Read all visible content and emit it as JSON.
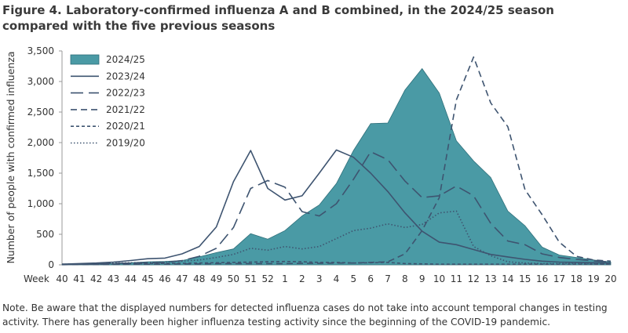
{
  "title": "Figure 4. Laboratory-confirmed influenza A and B combined, in the 2024/25 season compared with the five previous seasons",
  "note": "Note. Be aware that the displayed numbers for detected influenza cases do not take into account temporal changes in testing activity. There has generally been higher influenza testing activity since the beginning of the COVID-19 pandemic.",
  "colors": {
    "fill": "#4a9aa5",
    "line": "#3e5470",
    "axis": "#999999"
  },
  "chart_data": {
    "type": "area",
    "xlabel": "Week",
    "ylabel": "Number of people with confirmed influenza",
    "ylim": [
      0,
      3500
    ],
    "yticks": [
      "0",
      "500",
      "1,000",
      "1,500",
      "2,000",
      "2,500",
      "3,000",
      "3,500"
    ],
    "ytick_values": [
      0,
      500,
      1000,
      1500,
      2000,
      2500,
      3000,
      3500
    ],
    "categories": [
      "40",
      "41",
      "42",
      "43",
      "44",
      "45",
      "46",
      "47",
      "48",
      "49",
      "50",
      "51",
      "52",
      "1",
      "2",
      "3",
      "4",
      "5",
      "6",
      "7",
      "8",
      "9",
      "10",
      "11",
      "12",
      "13",
      "14",
      "15",
      "16",
      "17",
      "18",
      "19",
      "20"
    ],
    "legend_position": "top-left",
    "series": [
      {
        "name": "2024/25",
        "style": "area",
        "values": [
          5,
          10,
          15,
          25,
          35,
          50,
          55,
          70,
          130,
          200,
          260,
          510,
          420,
          560,
          800,
          980,
          1330,
          1870,
          2310,
          2320,
          2860,
          3210,
          2810,
          2030,
          1700,
          1430,
          880,
          640,
          290,
          160,
          120,
          80,
          45
        ]
      },
      {
        "name": "2023/24",
        "style": "solid",
        "values": [
          10,
          20,
          30,
          45,
          70,
          100,
          110,
          180,
          300,
          620,
          1360,
          1870,
          1250,
          1060,
          1130,
          1500,
          1880,
          1760,
          1500,
          1200,
          850,
          550,
          370,
          330,
          250,
          170,
          130,
          90,
          60,
          45,
          40,
          35,
          30
        ]
      },
      {
        "name": "2022/23",
        "style": "longdash",
        "values": [
          5,
          10,
          15,
          25,
          30,
          35,
          40,
          70,
          140,
          270,
          610,
          1250,
          1380,
          1270,
          870,
          800,
          1000,
          1400,
          1850,
          1720,
          1370,
          1100,
          1130,
          1290,
          1130,
          680,
          390,
          330,
          180,
          120,
          90,
          65,
          45
        ]
      },
      {
        "name": "2021/22",
        "style": "dash",
        "values": [
          2,
          5,
          5,
          8,
          10,
          10,
          10,
          15,
          15,
          20,
          20,
          20,
          20,
          20,
          25,
          25,
          30,
          30,
          40,
          50,
          180,
          560,
          1100,
          2700,
          3400,
          2650,
          2260,
          1230,
          820,
          370,
          140,
          80,
          60
        ]
      },
      {
        "name": "2020/21",
        "style": "shortdash",
        "values": [
          10,
          10,
          10,
          15,
          20,
          20,
          25,
          25,
          30,
          35,
          40,
          45,
          50,
          55,
          50,
          40,
          40,
          30,
          35,
          40,
          20,
          15,
          10,
          10,
          10,
          10,
          10,
          10,
          10,
          10,
          10,
          10,
          10
        ]
      },
      {
        "name": "2019/20",
        "style": "dotted",
        "values": [
          10,
          15,
          20,
          30,
          35,
          40,
          45,
          60,
          80,
          120,
          170,
          270,
          240,
          300,
          260,
          300,
          430,
          560,
          600,
          670,
          610,
          660,
          850,
          880,
          300,
          150,
          50,
          30,
          20,
          20,
          20,
          15,
          15
        ]
      }
    ]
  }
}
